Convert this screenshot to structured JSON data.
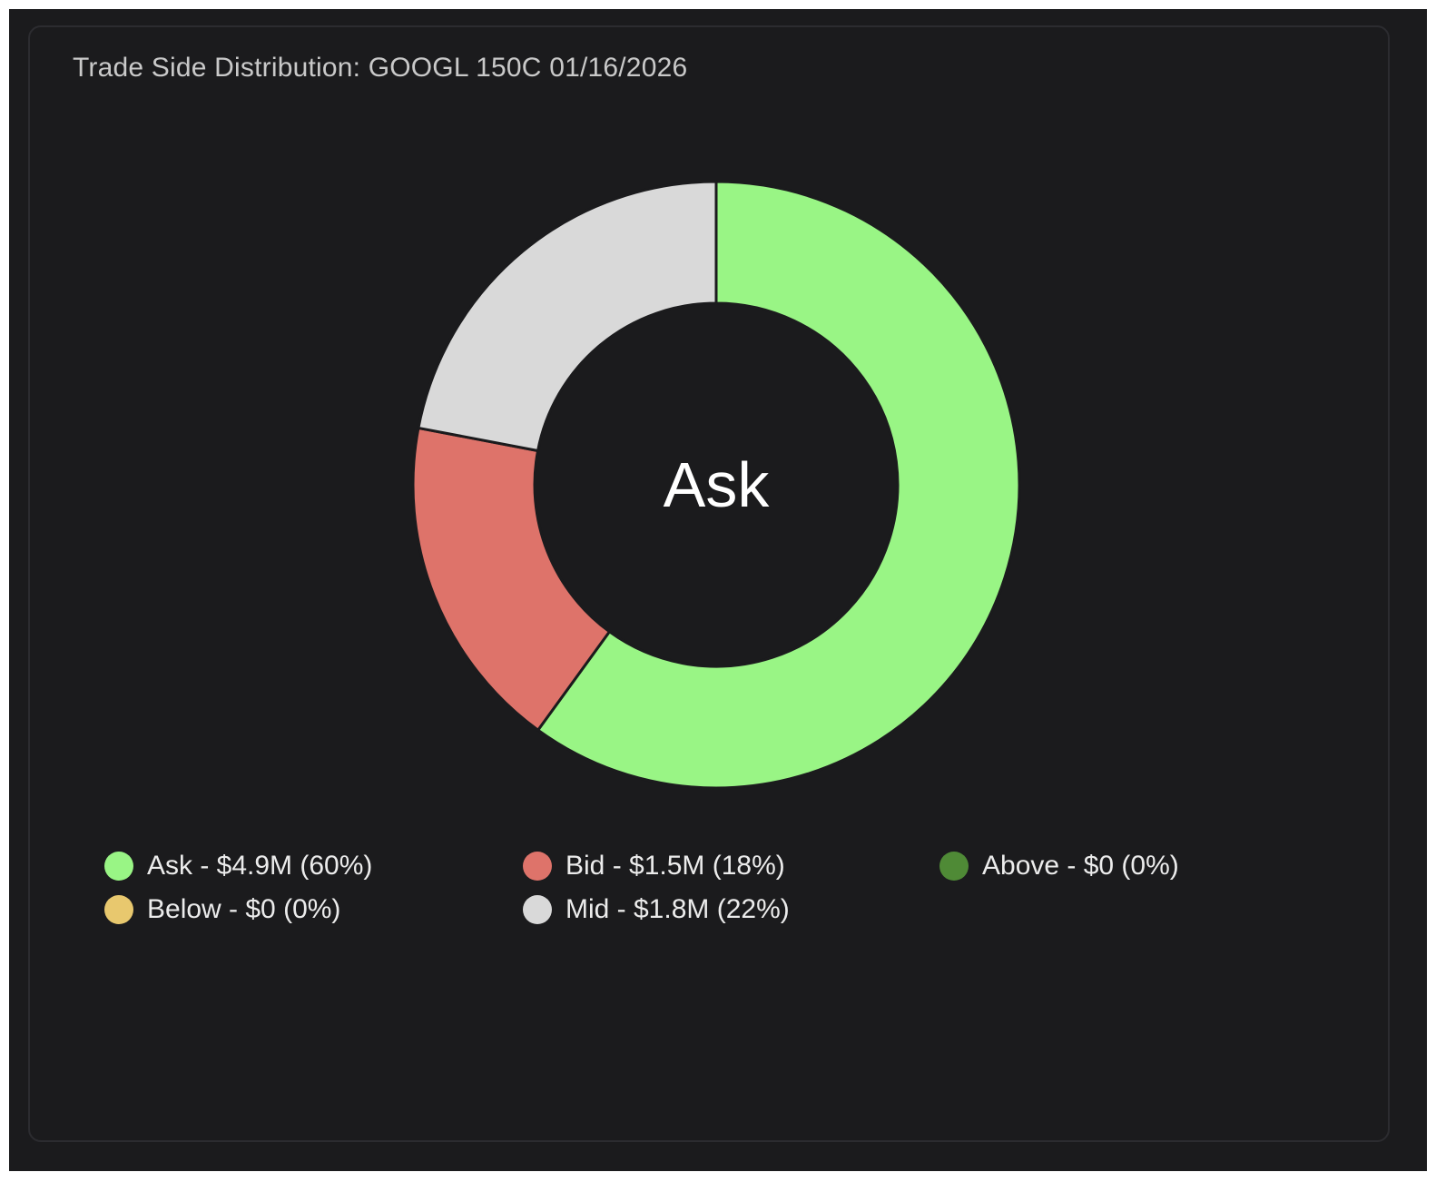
{
  "title": "Trade Side Distribution: GOOGL 150C 01/16/2026",
  "center_label": "Ask",
  "colors": {
    "background": "#1b1b1d",
    "ask": "#99f585",
    "bid": "#de736a",
    "above": "#4f8a36",
    "below": "#e8c86e",
    "mid": "#d9d9d9"
  },
  "legend": [
    {
      "key": "ask",
      "label": "Ask - $4.9M (60%)",
      "color": "#99f585",
      "icon": "circle-dot"
    },
    {
      "key": "bid",
      "label": "Bid - $1.5M (18%)",
      "color": "#de736a",
      "icon": "circle-dot"
    },
    {
      "key": "above",
      "label": "Above - $0 (0%)",
      "color": "#4f8a36",
      "icon": "circle-dot"
    },
    {
      "key": "below",
      "label": "Below - $0 (0%)",
      "color": "#e8c86e",
      "icon": "circle-dot"
    },
    {
      "key": "mid",
      "label": "Mid - $1.8M (22%)",
      "color": "#d9d9d9",
      "icon": "circle-dot"
    }
  ],
  "chart_data": {
    "type": "pie",
    "title": "Trade Side Distribution: GOOGL 150C 01/16/2026",
    "center_label": "Ask",
    "categories": [
      "Ask",
      "Bid",
      "Above",
      "Below",
      "Mid"
    ],
    "values": [
      4.9,
      1.5,
      0,
      0,
      1.8
    ],
    "value_labels": [
      "$4.9M",
      "$1.5M",
      "$0",
      "$0",
      "$1.8M"
    ],
    "percentages": [
      60,
      18,
      0,
      0,
      22
    ],
    "colors": [
      "#99f585",
      "#de736a",
      "#4f8a36",
      "#e8c86e",
      "#d9d9d9"
    ],
    "legend_position": "bottom"
  }
}
